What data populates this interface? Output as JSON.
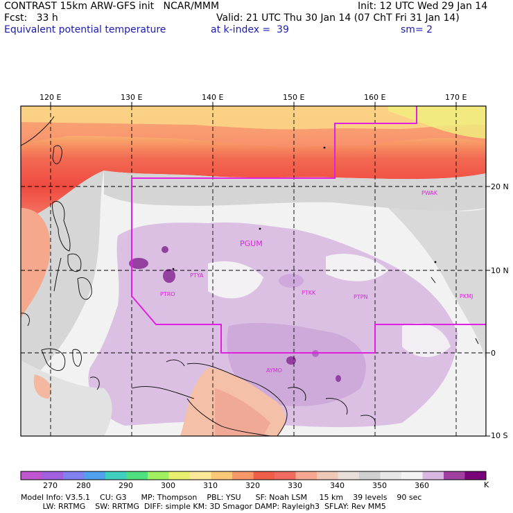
{
  "header": {
    "title_left": "CONTRAST 15km ARW-GFS init   NCAR/MMM",
    "init": "Init: 12 UTC Wed 29 Jan 14",
    "fcst": "Fcst:   33 h",
    "valid": "Valid: 21 UTC Thu 30 Jan 14 (07 ChT Fri 31 Jan 14)",
    "field": "Equivalent potential temperature",
    "level": "at k-index =  39",
    "smooth": "sm= 2"
  },
  "map": {
    "lon_labels": [
      "120 E",
      "130 E",
      "140 E",
      "150 E",
      "160 E",
      "170 E"
    ],
    "lat_labels": [
      "20 N",
      "10 N",
      "0",
      "10 S"
    ],
    "stations": [
      "PWAK",
      "PGUM",
      "PTYA",
      "PTRO",
      "PTKK",
      "PTPN",
      "PKMJ",
      "AYMO"
    ],
    "station_color": "#e020e0",
    "boundary_color": "#e020e0"
  },
  "colorbar": {
    "unit": "K",
    "labels": [
      "270",
      "280",
      "290",
      "300",
      "310",
      "320",
      "330",
      "340",
      "350",
      "360"
    ],
    "colors": [
      "#c055d0",
      "#a060e0",
      "#8080f0",
      "#50a0f0",
      "#40d0c0",
      "#50e080",
      "#a0f060",
      "#e8f070",
      "#fce898",
      "#f8c878",
      "#f89868",
      "#f06048",
      "#f06a60",
      "#f8a890",
      "#f0c8b8",
      "#e8e0d8",
      "#d0d0d0",
      "#e8e8e8",
      "#f4f4f4",
      "#d8b8e0",
      "#a040a0",
      "#780078"
    ]
  },
  "model_info": {
    "line1": "Model Info: V3.5.1    CU: G3      MP: Thompson    PBL: YSU      SF: Noah LSM     15 km    39 levels    90 sec",
    "line2": "         LW: RRTMG    SW: RRTMG  DIFF: simple KM: 3D Smagor DAMP: Rayleigh3  SFLAY: Rev MM5"
  }
}
